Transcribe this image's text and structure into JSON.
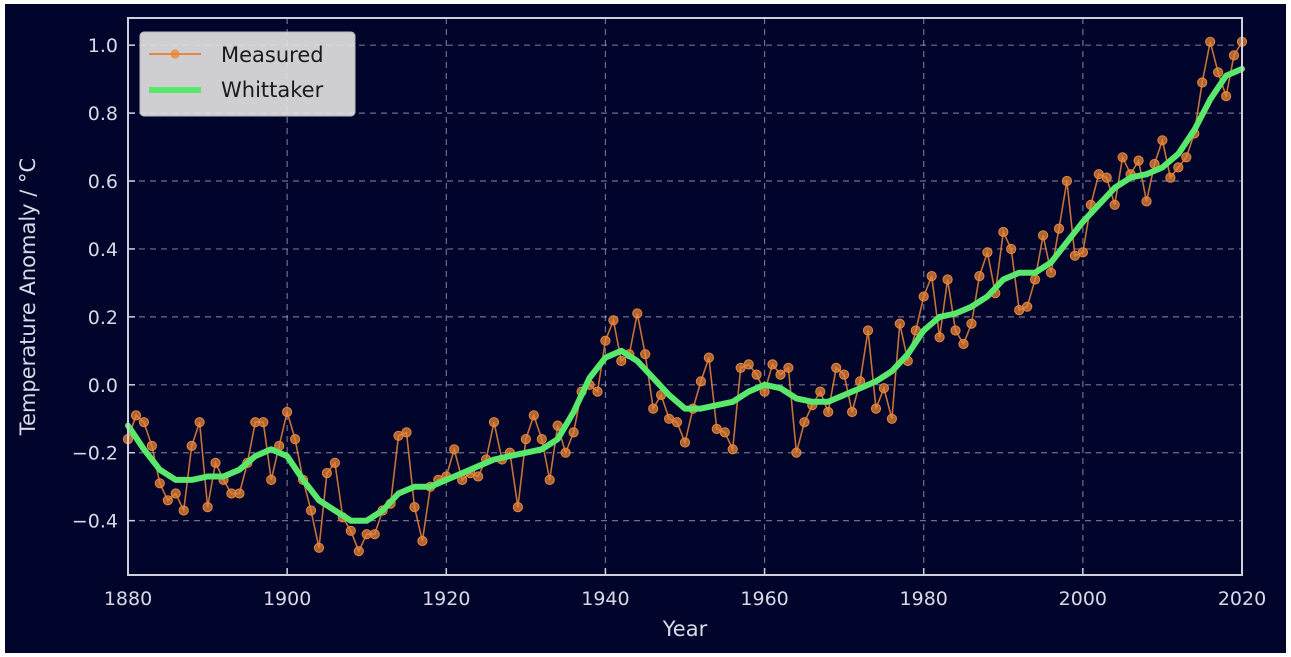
{
  "chart_data": {
    "type": "line",
    "title": "",
    "xlabel": "Year",
    "ylabel": "Temperature Anomaly / °C",
    "xlim": [
      1880,
      2020
    ],
    "ylim": [
      -0.56,
      1.08
    ],
    "grid": true,
    "legend_position": "top-left",
    "x_ticks": [
      "1880",
      "1900",
      "1920",
      "1940",
      "1960",
      "1980",
      "2000",
      "2020"
    ],
    "y_ticks": [
      "−0.4",
      "−0.2",
      "0.0",
      "0.2",
      "0.4",
      "0.6",
      "0.8",
      "1.0"
    ],
    "colors": {
      "background": "#02052b",
      "measured": "#e8863a",
      "whittaker": "#59e86c",
      "grid": "#c8c8d8",
      "spine": "#d0d0dc"
    },
    "series": [
      {
        "name": "Measured",
        "style": "line-markers",
        "x": [
          1880,
          1881,
          1882,
          1883,
          1884,
          1885,
          1886,
          1887,
          1888,
          1889,
          1890,
          1891,
          1892,
          1893,
          1894,
          1895,
          1896,
          1897,
          1898,
          1899,
          1900,
          1901,
          1902,
          1903,
          1904,
          1905,
          1906,
          1907,
          1908,
          1909,
          1910,
          1911,
          1912,
          1913,
          1914,
          1915,
          1916,
          1917,
          1918,
          1919,
          1920,
          1921,
          1922,
          1923,
          1924,
          1925,
          1926,
          1927,
          1928,
          1929,
          1930,
          1931,
          1932,
          1933,
          1934,
          1935,
          1936,
          1937,
          1938,
          1939,
          1940,
          1941,
          1942,
          1943,
          1944,
          1945,
          1946,
          1947,
          1948,
          1949,
          1950,
          1951,
          1952,
          1953,
          1954,
          1955,
          1956,
          1957,
          1958,
          1959,
          1960,
          1961,
          1962,
          1963,
          1964,
          1965,
          1966,
          1967,
          1968,
          1969,
          1970,
          1971,
          1972,
          1973,
          1974,
          1975,
          1976,
          1977,
          1978,
          1979,
          1980,
          1981,
          1982,
          1983,
          1984,
          1985,
          1986,
          1987,
          1988,
          1989,
          1990,
          1991,
          1992,
          1993,
          1994,
          1995,
          1996,
          1997,
          1998,
          1999,
          2000,
          2001,
          2002,
          2003,
          2004,
          2005,
          2006,
          2007,
          2008,
          2009,
          2010,
          2011,
          2012,
          2013,
          2014,
          2015,
          2016,
          2017,
          2018,
          2019,
          2020
        ],
        "y": [
          -0.16,
          -0.09,
          -0.11,
          -0.18,
          -0.29,
          -0.34,
          -0.32,
          -0.37,
          -0.18,
          -0.11,
          -0.36,
          -0.23,
          -0.28,
          -0.32,
          -0.32,
          -0.23,
          -0.11,
          -0.11,
          -0.28,
          -0.18,
          -0.08,
          -0.16,
          -0.28,
          -0.37,
          -0.48,
          -0.26,
          -0.23,
          -0.39,
          -0.43,
          -0.49,
          -0.44,
          -0.44,
          -0.37,
          -0.35,
          -0.15,
          -0.14,
          -0.36,
          -0.46,
          -0.3,
          -0.28,
          -0.27,
          -0.19,
          -0.28,
          -0.26,
          -0.27,
          -0.22,
          -0.11,
          -0.22,
          -0.2,
          -0.36,
          -0.16,
          -0.09,
          -0.16,
          -0.28,
          -0.12,
          -0.2,
          -0.14,
          -0.02,
          -0.0,
          -0.02,
          0.13,
          0.19,
          0.07,
          0.09,
          0.21,
          0.09,
          -0.07,
          -0.03,
          -0.1,
          -0.11,
          -0.17,
          -0.07,
          0.01,
          0.08,
          -0.13,
          -0.14,
          -0.19,
          0.05,
          0.06,
          0.03,
          -0.02,
          0.06,
          0.03,
          0.05,
          -0.2,
          -0.11,
          -0.06,
          -0.02,
          -0.08,
          0.05,
          0.03,
          -0.08,
          0.01,
          0.16,
          -0.07,
          -0.01,
          -0.1,
          0.18,
          0.07,
          0.16,
          0.26,
          0.32,
          0.14,
          0.31,
          0.16,
          0.12,
          0.18,
          0.32,
          0.39,
          0.27,
          0.45,
          0.4,
          0.22,
          0.23,
          0.31,
          0.44,
          0.33,
          0.46,
          0.6,
          0.38,
          0.39,
          0.53,
          0.62,
          0.61,
          0.53,
          0.67,
          0.62,
          0.66,
          0.54,
          0.65,
          0.72,
          0.61,
          0.64,
          0.67,
          0.74,
          0.89,
          1.01,
          0.92,
          0.85,
          0.97,
          1.01
        ]
      },
      {
        "name": "Whittaker",
        "style": "line",
        "x": [
          1880,
          1882,
          1884,
          1886,
          1888,
          1890,
          1892,
          1894,
          1896,
          1898,
          1900,
          1902,
          1904,
          1906,
          1908,
          1910,
          1912,
          1914,
          1916,
          1918,
          1920,
          1922,
          1924,
          1926,
          1928,
          1930,
          1932,
          1934,
          1936,
          1938,
          1940,
          1942,
          1944,
          1946,
          1948,
          1950,
          1952,
          1954,
          1956,
          1958,
          1960,
          1962,
          1964,
          1966,
          1968,
          1970,
          1972,
          1974,
          1976,
          1978,
          1980,
          1982,
          1984,
          1986,
          1988,
          1990,
          1992,
          1994,
          1996,
          1998,
          2000,
          2002,
          2004,
          2006,
          2008,
          2010,
          2012,
          2014,
          2016,
          2018,
          2020
        ],
        "y": [
          -0.12,
          -0.19,
          -0.25,
          -0.28,
          -0.28,
          -0.27,
          -0.27,
          -0.25,
          -0.21,
          -0.19,
          -0.21,
          -0.28,
          -0.34,
          -0.37,
          -0.4,
          -0.4,
          -0.37,
          -0.32,
          -0.3,
          -0.3,
          -0.28,
          -0.26,
          -0.24,
          -0.22,
          -0.21,
          -0.2,
          -0.19,
          -0.16,
          -0.08,
          0.02,
          0.08,
          0.1,
          0.07,
          0.02,
          -0.03,
          -0.07,
          -0.07,
          -0.06,
          -0.05,
          -0.02,
          0.0,
          -0.01,
          -0.04,
          -0.05,
          -0.05,
          -0.03,
          -0.01,
          0.01,
          0.04,
          0.09,
          0.16,
          0.2,
          0.21,
          0.23,
          0.26,
          0.31,
          0.33,
          0.33,
          0.36,
          0.42,
          0.48,
          0.53,
          0.58,
          0.61,
          0.62,
          0.64,
          0.68,
          0.75,
          0.84,
          0.91,
          0.93
        ]
      }
    ]
  }
}
